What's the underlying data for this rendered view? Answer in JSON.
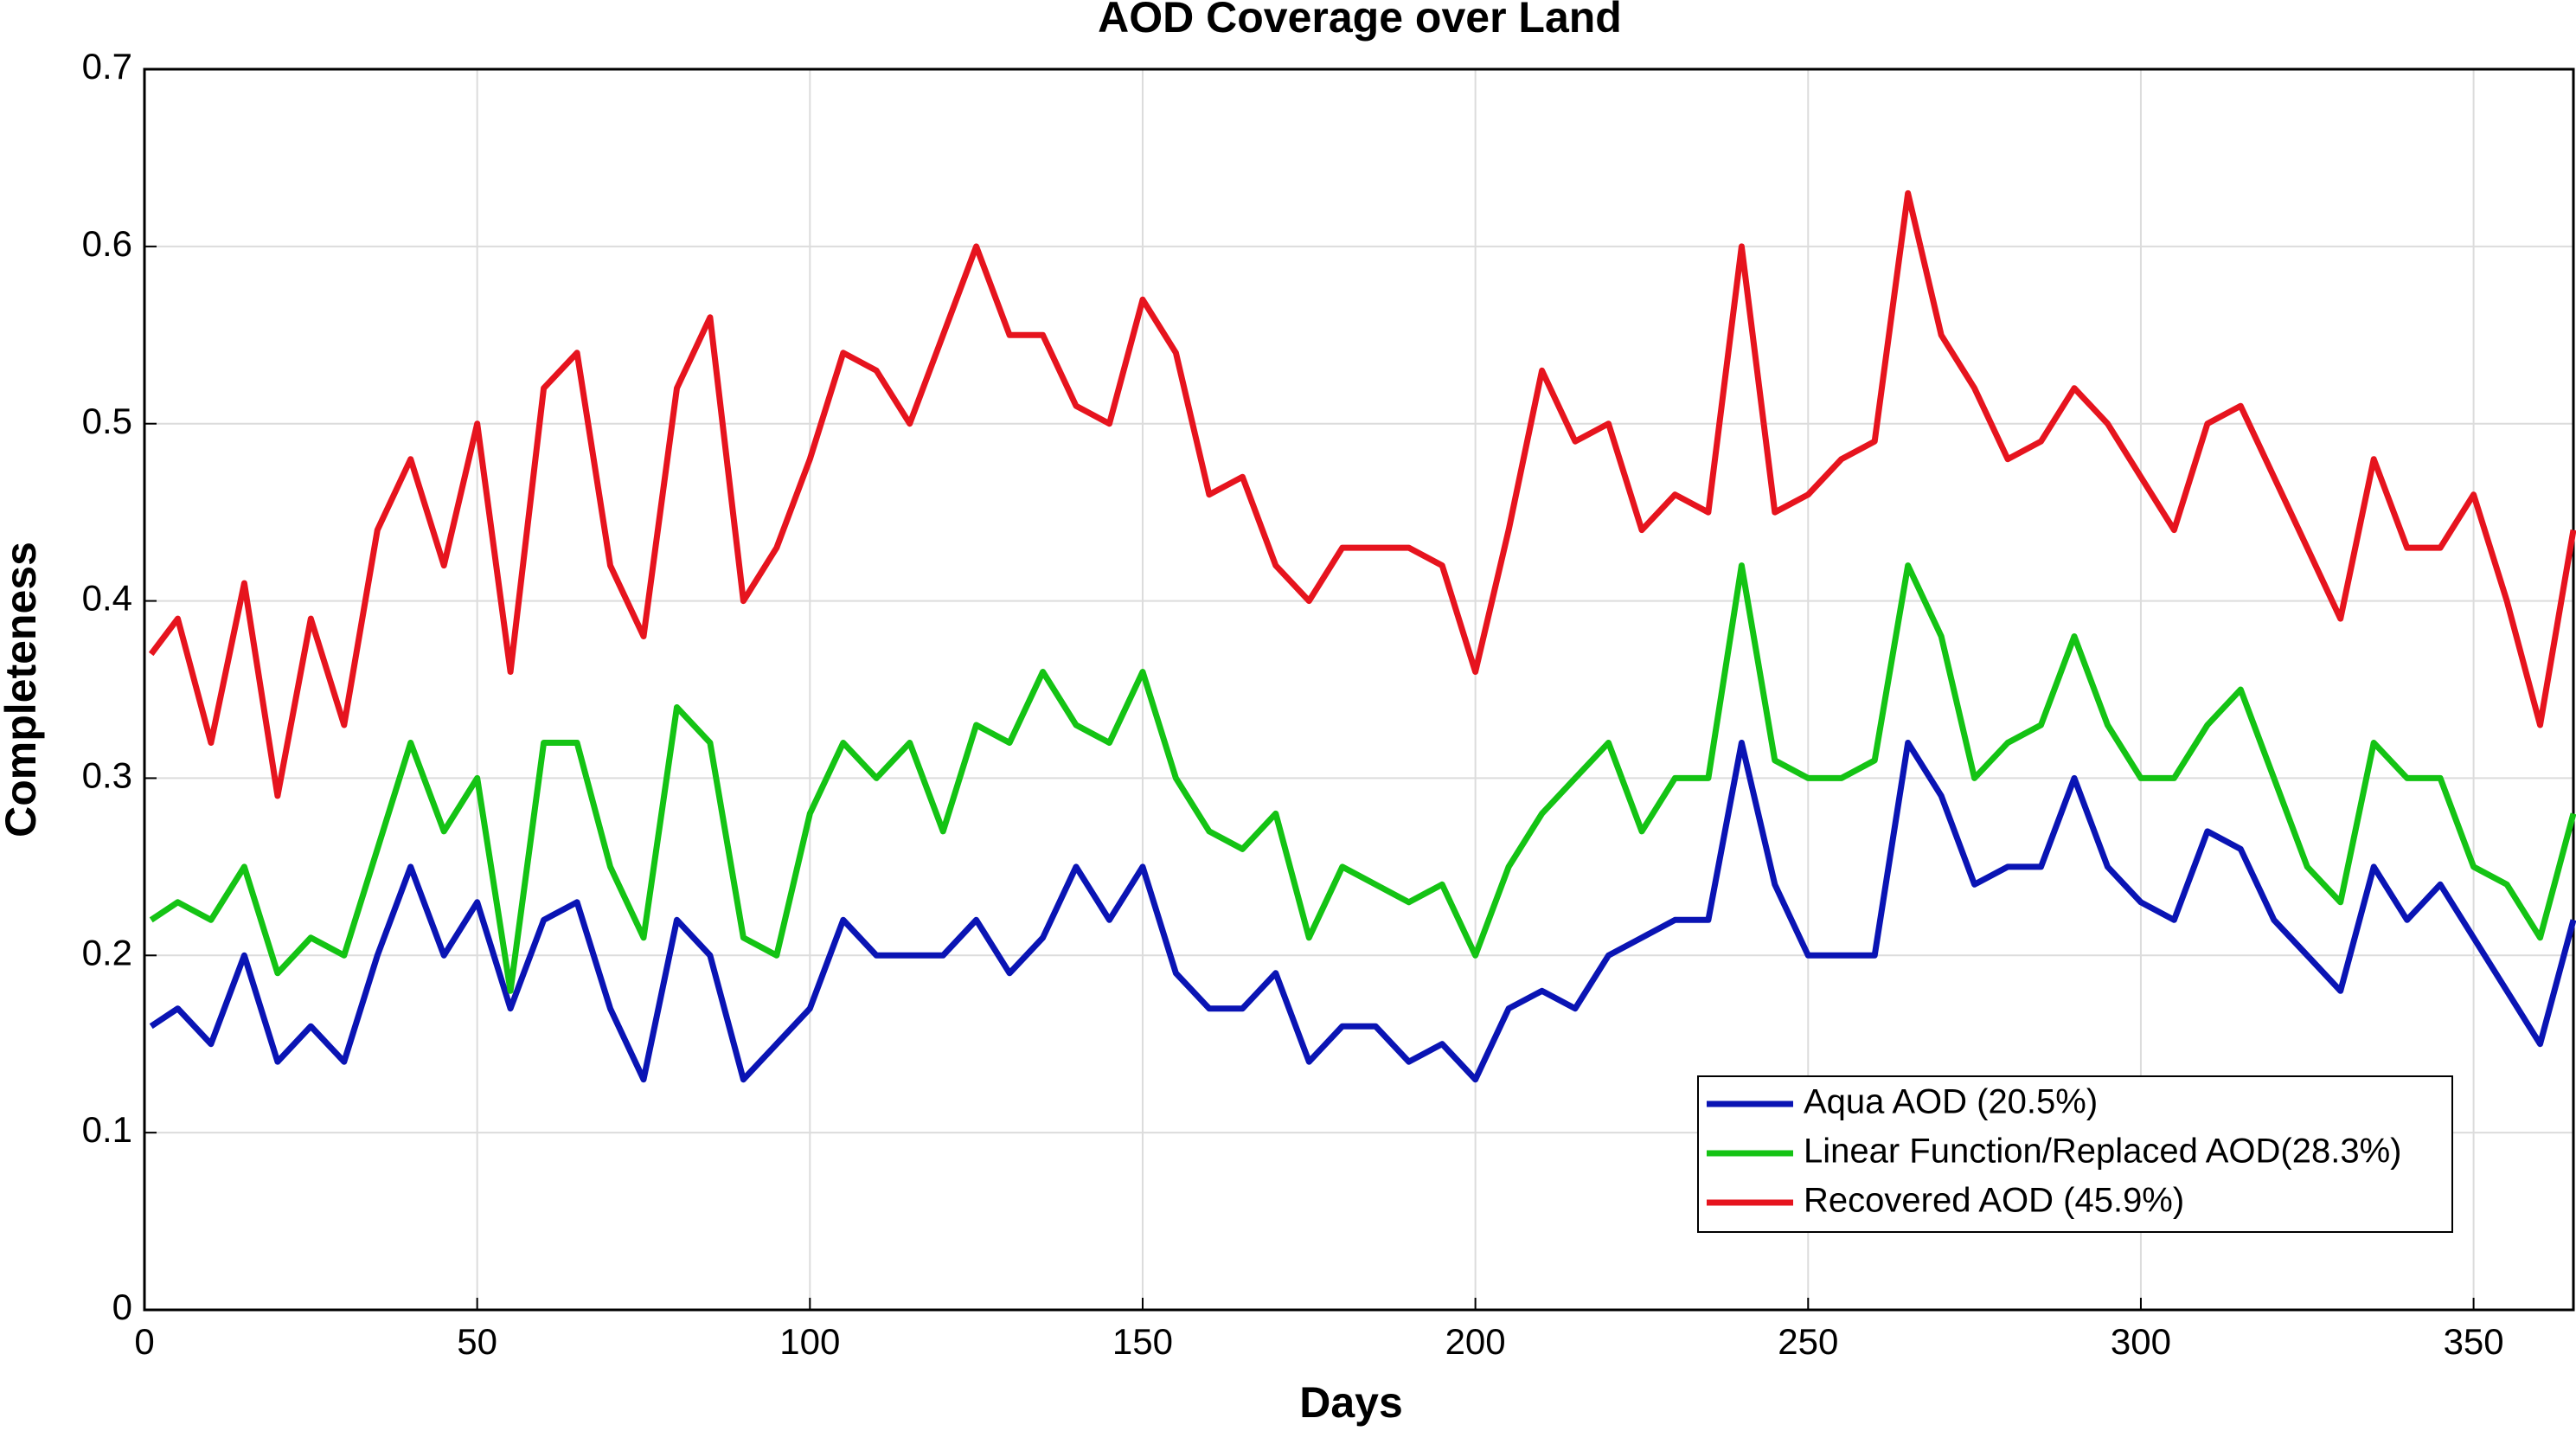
{
  "chart_data": {
    "type": "line",
    "title": "AOD Coverage over Land",
    "x_label": "Days",
    "y_label": "Completeness",
    "x": [
      1,
      5,
      10,
      15,
      20,
      25,
      30,
      35,
      40,
      45,
      50,
      55,
      60,
      65,
      70,
      75,
      80,
      85,
      90,
      95,
      100,
      105,
      110,
      115,
      120,
      125,
      130,
      135,
      140,
      145,
      150,
      155,
      160,
      165,
      170,
      175,
      180,
      185,
      190,
      195,
      200,
      205,
      210,
      215,
      220,
      225,
      230,
      235,
      240,
      245,
      250,
      255,
      260,
      265,
      270,
      275,
      280,
      285,
      290,
      295,
      300,
      305,
      310,
      315,
      320,
      325,
      330,
      335,
      340,
      345,
      350,
      355,
      360,
      365
    ],
    "series": [
      {
        "name": "Aqua AOD (20.5%)",
        "color": "#0a14b4",
        "values": [
          0.16,
          0.17,
          0.15,
          0.2,
          0.14,
          0.16,
          0.14,
          0.2,
          0.25,
          0.2,
          0.23,
          0.17,
          0.22,
          0.23,
          0.17,
          0.13,
          0.22,
          0.2,
          0.13,
          0.15,
          0.17,
          0.22,
          0.2,
          0.2,
          0.2,
          0.22,
          0.19,
          0.21,
          0.25,
          0.22,
          0.25,
          0.19,
          0.17,
          0.17,
          0.19,
          0.14,
          0.16,
          0.16,
          0.14,
          0.15,
          0.13,
          0.17,
          0.18,
          0.17,
          0.2,
          0.21,
          0.22,
          0.22,
          0.32,
          0.24,
          0.2,
          0.2,
          0.2,
          0.32,
          0.29,
          0.24,
          0.25,
          0.25,
          0.3,
          0.25,
          0.23,
          0.22,
          0.27,
          0.26,
          0.22,
          0.2,
          0.18,
          0.25,
          0.22,
          0.24,
          0.21,
          0.18,
          0.15,
          0.22
        ]
      },
      {
        "name": "Linear Function/Replaced AOD(28.3%)",
        "color": "#14c314",
        "values": [
          0.22,
          0.23,
          0.22,
          0.25,
          0.19,
          0.21,
          0.2,
          0.26,
          0.32,
          0.27,
          0.3,
          0.18,
          0.32,
          0.32,
          0.25,
          0.21,
          0.34,
          0.32,
          0.21,
          0.2,
          0.28,
          0.32,
          0.3,
          0.32,
          0.27,
          0.33,
          0.32,
          0.36,
          0.33,
          0.32,
          0.36,
          0.3,
          0.27,
          0.26,
          0.28,
          0.21,
          0.25,
          0.24,
          0.23,
          0.24,
          0.2,
          0.25,
          0.28,
          0.3,
          0.32,
          0.27,
          0.3,
          0.3,
          0.42,
          0.31,
          0.3,
          0.3,
          0.31,
          0.42,
          0.38,
          0.3,
          0.32,
          0.33,
          0.38,
          0.33,
          0.3,
          0.3,
          0.33,
          0.35,
          0.3,
          0.25,
          0.23,
          0.32,
          0.3,
          0.3,
          0.25,
          0.24,
          0.21,
          0.28
        ]
      },
      {
        "name": "Recovered AOD (45.9%)",
        "color": "#e6141e",
        "values": [
          0.37,
          0.39,
          0.32,
          0.41,
          0.29,
          0.39,
          0.33,
          0.44,
          0.48,
          0.42,
          0.5,
          0.36,
          0.52,
          0.54,
          0.42,
          0.38,
          0.52,
          0.56,
          0.4,
          0.43,
          0.48,
          0.54,
          0.53,
          0.5,
          0.55,
          0.6,
          0.55,
          0.55,
          0.51,
          0.5,
          0.57,
          0.54,
          0.46,
          0.47,
          0.42,
          0.4,
          0.43,
          0.43,
          0.43,
          0.42,
          0.36,
          0.44,
          0.53,
          0.49,
          0.5,
          0.44,
          0.46,
          0.45,
          0.6,
          0.45,
          0.46,
          0.48,
          0.49,
          0.63,
          0.55,
          0.52,
          0.48,
          0.49,
          0.52,
          0.5,
          0.47,
          0.44,
          0.5,
          0.51,
          0.47,
          0.43,
          0.39,
          0.48,
          0.43,
          0.43,
          0.46,
          0.4,
          0.33,
          0.44
        ]
      }
    ],
    "xlim": [
      0,
      365
    ],
    "xticks": [
      0,
      50,
      100,
      150,
      200,
      250,
      300,
      350
    ],
    "ylim": [
      0,
      0.7
    ],
    "yticks": [
      0,
      0.1,
      0.2,
      0.3,
      0.4,
      0.5,
      0.6,
      0.7
    ],
    "grid": true,
    "legend": "lower right"
  }
}
